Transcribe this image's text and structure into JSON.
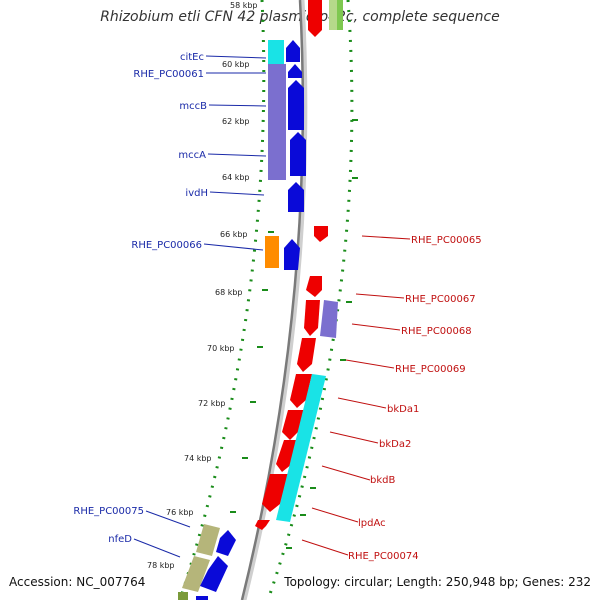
{
  "title": "Rhizobium etli CFN 42 plasmid p42c, complete sequence",
  "footer": {
    "accession": "Accession: NC_007764",
    "summary": "Topology: circular; Length: 250,948 bp; Genes: 232"
  },
  "kbp_labels": [
    "58 kbp",
    "60 kbp",
    "62 kbp",
    "64 kbp",
    "66 kbp",
    "68 kbp",
    "70 kbp",
    "72 kbp",
    "74 kbp",
    "76 kbp",
    "78 kbp"
  ],
  "left_genes": [
    "citEc",
    "RHE_PC00061",
    "mccB",
    "mccA",
    "ivdH",
    "RHE_PC00066",
    "RHE_PC00075",
    "nfeD"
  ],
  "right_genes": [
    "RHE_PC00065",
    "RHE_PC00067",
    "RHE_PC00068",
    "RHE_PC00069",
    "bkDa1",
    "bkDa2",
    "bkdB",
    "lpdAc",
    "RHE_PC00074"
  ],
  "colors": {
    "forward_cds": "#0a0ad8",
    "reverse_cds": "#ee0000",
    "lavender": "#7b6fcf",
    "cyan": "#19e3e6",
    "orange": "#ff8c00",
    "olive": "#b5b57a",
    "green_dot": "#1a8c1a",
    "left_label": "#1a2aa8",
    "right_label": "#c01010"
  }
}
